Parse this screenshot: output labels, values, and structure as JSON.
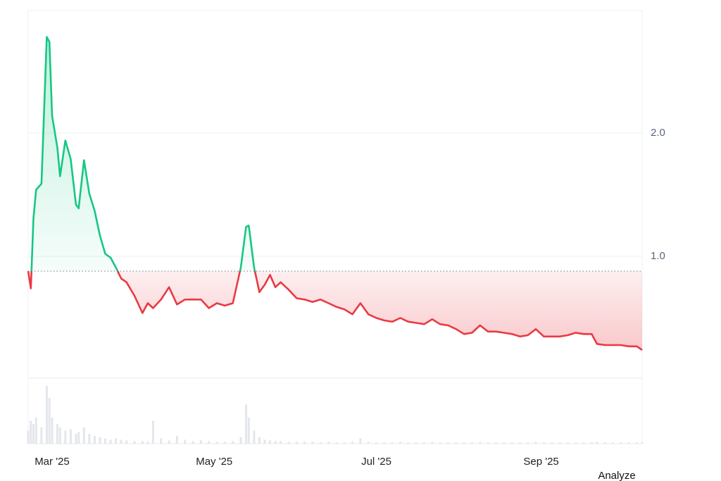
{
  "chart_data": {
    "type": "line",
    "x": [
      0,
      1,
      2,
      3,
      5,
      7,
      8,
      9,
      11,
      12,
      14,
      16,
      18,
      19,
      21,
      23,
      25,
      27,
      29,
      31,
      33,
      35,
      37,
      40,
      43,
      45,
      47,
      50,
      53,
      56,
      59,
      62,
      65,
      68,
      71,
      74,
      77,
      80,
      82,
      83,
      85,
      87,
      89,
      91,
      93,
      95,
      98,
      101,
      104,
      107,
      110,
      113,
      116,
      119,
      122,
      125,
      128,
      131,
      134,
      137,
      140,
      143,
      146,
      149,
      152,
      155,
      158,
      161,
      164,
      167,
      170,
      173,
      176,
      179,
      182,
      185,
      188,
      191,
      194,
      197,
      200,
      203,
      206,
      209,
      212,
      214,
      217,
      220,
      223,
      226,
      229,
      231
    ],
    "values": [
      0.88,
      0.74,
      1.31,
      1.54,
      1.59,
      2.78,
      2.74,
      2.14,
      1.88,
      1.65,
      1.94,
      1.79,
      1.42,
      1.39,
      1.78,
      1.51,
      1.37,
      1.17,
      1.02,
      0.99,
      0.91,
      0.82,
      0.79,
      0.68,
      0.54,
      0.62,
      0.58,
      0.65,
      0.75,
      0.61,
      0.65,
      0.65,
      0.65,
      0.58,
      0.62,
      0.6,
      0.62,
      0.91,
      1.24,
      1.25,
      0.91,
      0.71,
      0.77,
      0.85,
      0.75,
      0.79,
      0.73,
      0.66,
      0.65,
      0.63,
      0.65,
      0.62,
      0.59,
      0.57,
      0.53,
      0.62,
      0.53,
      0.5,
      0.48,
      0.47,
      0.5,
      0.47,
      0.46,
      0.45,
      0.49,
      0.45,
      0.44,
      0.41,
      0.37,
      0.38,
      0.44,
      0.39,
      0.39,
      0.38,
      0.37,
      0.35,
      0.36,
      0.41,
      0.35,
      0.35,
      0.35,
      0.36,
      0.38,
      0.37,
      0.37,
      0.29,
      0.28,
      0.28,
      0.28,
      0.27,
      0.27,
      0.24
    ],
    "baseline": 0.88,
    "up_color": "#16c784",
    "down_color": "#ea3943",
    "xlim": [
      0,
      231
    ],
    "xticks": [
      {
        "value": 9,
        "label": "Mar '25"
      },
      {
        "value": 70,
        "label": "May '25"
      },
      {
        "value": 131,
        "label": "Jul '25"
      },
      {
        "value": 193,
        "label": "Sep '25"
      }
    ],
    "ylim": [
      0,
      3
    ],
    "yticks": [
      {
        "value": 1,
        "label": "1.0"
      },
      {
        "value": 2,
        "label": "2.0"
      }
    ],
    "grid": true,
    "volume": {
      "color": "#e3e6ec",
      "ylim": [
        0,
        100
      ],
      "values": [
        20,
        35,
        30,
        40,
        25,
        88,
        70,
        40,
        30,
        25,
        20,
        22,
        15,
        18,
        25,
        15,
        12,
        10,
        8,
        6,
        8,
        6,
        5,
        4,
        4,
        3,
        35,
        8,
        5,
        12,
        6,
        4,
        5,
        4,
        3,
        3,
        4,
        10,
        60,
        40,
        20,
        10,
        6,
        5,
        4,
        4,
        3,
        3,
        3,
        3,
        2,
        3,
        2,
        2,
        3,
        8,
        3,
        2,
        2,
        2,
        3,
        2,
        2,
        2,
        3,
        2,
        2,
        2,
        2,
        2,
        3,
        2,
        2,
        2,
        2,
        2,
        2,
        3,
        2,
        2,
        2,
        2,
        2,
        2,
        2,
        3,
        2,
        2,
        2,
        2,
        2,
        2
      ]
    }
  },
  "ui": {
    "button": "Analyze"
  }
}
